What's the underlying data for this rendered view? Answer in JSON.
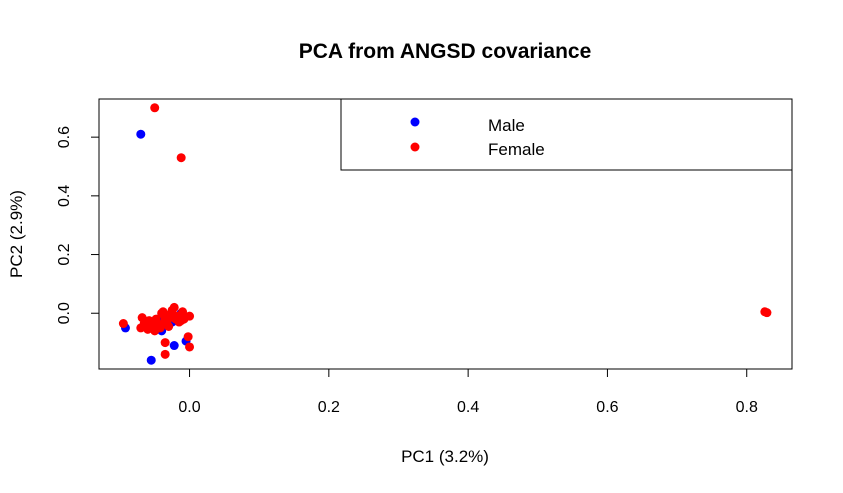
{
  "chart_data": {
    "type": "scatter",
    "title": "PCA from ANGSD covariance",
    "xlabel": "PC1 (3.2%)",
    "ylabel": "PC2 (2.9%)",
    "xlim": [
      -0.13,
      0.865
    ],
    "ylim": [
      -0.19,
      0.73
    ],
    "x_ticks": [
      0.0,
      0.2,
      0.4,
      0.6,
      0.8
    ],
    "x_tick_labels": [
      "0.0",
      "0.2",
      "0.4",
      "0.6",
      "0.8"
    ],
    "y_ticks": [
      0.0,
      0.2,
      0.4,
      0.6
    ],
    "y_tick_labels": [
      "0.0",
      "0.2",
      "0.4",
      "0.6"
    ],
    "grid": false,
    "legend_position": "top-right",
    "series": [
      {
        "name": "Male",
        "color": "#0000ff",
        "points": [
          [
            -0.07,
            0.61
          ],
          [
            -0.092,
            -0.05
          ],
          [
            -0.055,
            -0.16
          ],
          [
            -0.045,
            -0.02
          ],
          [
            -0.035,
            -0.04
          ],
          [
            -0.03,
            -0.02
          ],
          [
            -0.025,
            -0.03
          ],
          [
            -0.022,
            -0.11
          ],
          [
            -0.012,
            0.0
          ],
          [
            -0.005,
            -0.095
          ],
          [
            -0.06,
            -0.04
          ],
          [
            -0.04,
            -0.06
          ],
          [
            -0.015,
            -0.02
          ]
        ]
      },
      {
        "name": "Female",
        "color": "#ff0000",
        "points": [
          [
            -0.05,
            0.7
          ],
          [
            -0.012,
            0.53
          ],
          [
            -0.095,
            -0.035
          ],
          [
            -0.07,
            -0.05
          ],
          [
            -0.068,
            -0.015
          ],
          [
            -0.065,
            -0.035
          ],
          [
            -0.06,
            -0.055
          ],
          [
            -0.058,
            -0.025
          ],
          [
            -0.055,
            -0.045
          ],
          [
            -0.052,
            -0.03
          ],
          [
            -0.05,
            -0.06
          ],
          [
            -0.048,
            -0.02
          ],
          [
            -0.045,
            -0.04
          ],
          [
            -0.042,
            -0.05
          ],
          [
            -0.04,
            0.0
          ],
          [
            -0.038,
            0.005
          ],
          [
            -0.036,
            -0.03
          ],
          [
            -0.035,
            -0.015
          ],
          [
            -0.032,
            -0.025
          ],
          [
            -0.03,
            -0.045
          ],
          [
            -0.028,
            -0.005
          ],
          [
            -0.025,
            0.01
          ],
          [
            -0.022,
            0.02
          ],
          [
            -0.02,
            -0.02
          ],
          [
            -0.018,
            -0.01
          ],
          [
            -0.015,
            -0.03
          ],
          [
            -0.012,
            -0.025
          ],
          [
            -0.01,
            0.005
          ],
          [
            -0.008,
            -0.02
          ],
          [
            0.0,
            -0.01
          ],
          [
            -0.002,
            -0.08
          ],
          [
            0.0,
            -0.115
          ],
          [
            -0.035,
            -0.1
          ],
          [
            -0.035,
            -0.14
          ],
          [
            0.826,
            0.005
          ],
          [
            0.829,
            0.002
          ]
        ]
      }
    ]
  }
}
